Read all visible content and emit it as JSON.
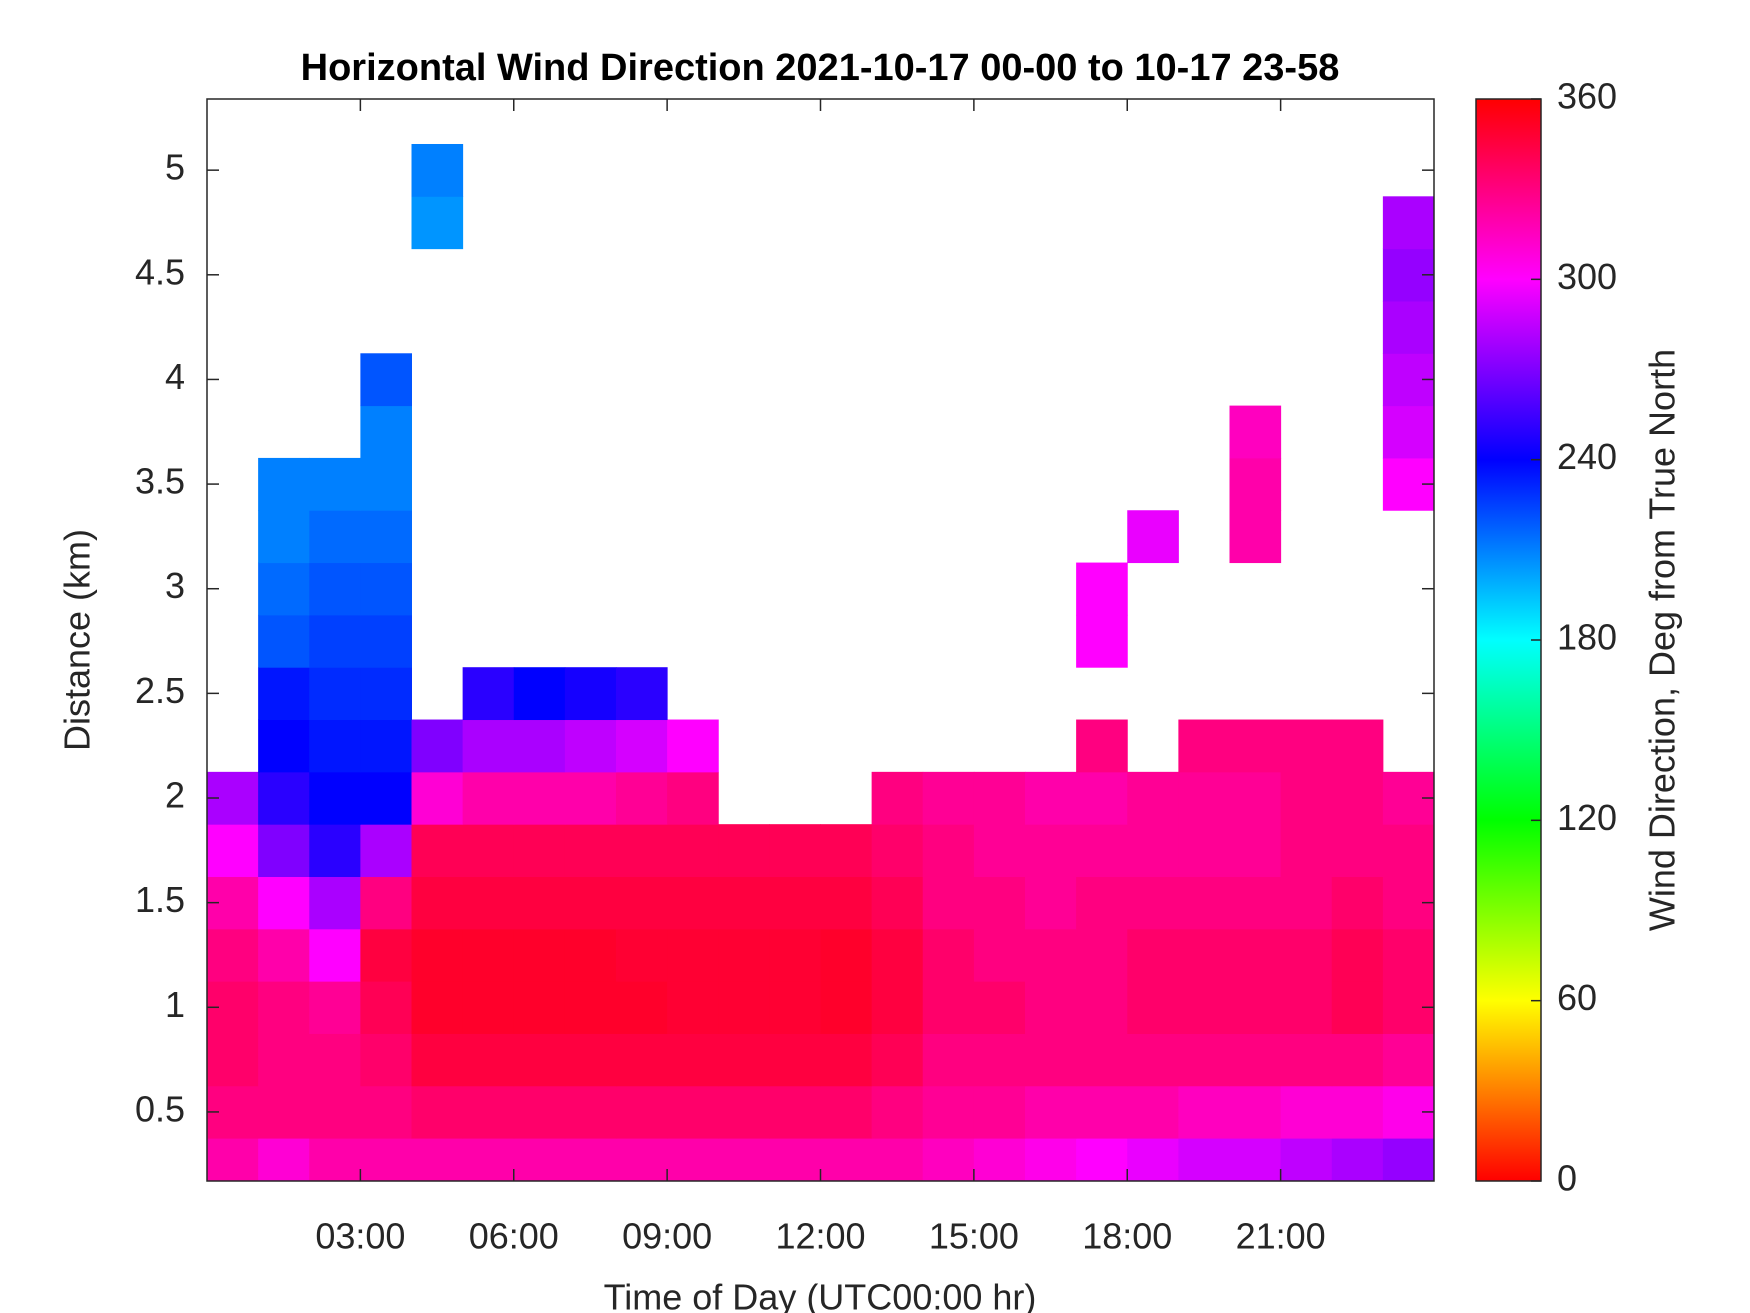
{
  "chart_data": {
    "type": "heatmap",
    "title": "Horizontal Wind Direction 2021-10-17 00-00 to 10-17 23-58",
    "x_label": "Time of Day (UTC00:00 hr)",
    "y_label": "Distance (km)",
    "xlim": [
      0,
      24
    ],
    "xticks": [
      {
        "value": 3,
        "label": "03:00"
      },
      {
        "value": 6,
        "label": "06:00"
      },
      {
        "value": 9,
        "label": "09:00"
      },
      {
        "value": 12,
        "label": "12:00"
      },
      {
        "value": 15,
        "label": "15:00"
      },
      {
        "value": 18,
        "label": "18:00"
      },
      {
        "value": 21,
        "label": "21:00"
      }
    ],
    "ylim": [
      0.17,
      5.34
    ],
    "yticks": [
      0.5,
      1,
      1.5,
      2,
      2.5,
      3,
      3.5,
      4,
      4.5,
      5
    ],
    "x": [
      0.5,
      1.5,
      2.5,
      3.5,
      4.5,
      5.5,
      6.5,
      7.5,
      8.5,
      9.5,
      10.5,
      11.5,
      12.5,
      13.5,
      14.5,
      15.5,
      16.5,
      17.5,
      18.5,
      19.5,
      20.5,
      21.5,
      22.5,
      23.5
    ],
    "y": [
      0.25,
      0.5,
      0.75,
      1,
      1.25,
      1.5,
      1.75,
      2,
      2.25,
      2.5,
      2.75,
      3,
      3.25,
      3.5,
      3.75,
      4,
      4.25,
      4.5,
      4.75,
      5
    ],
    "z": [
      [
        320,
        310,
        320,
        320,
        320,
        320,
        320,
        320,
        320,
        320,
        320,
        320,
        320,
        320,
        315,
        310,
        305,
        300,
        295,
        290,
        290,
        285,
        280,
        275
      ],
      [
        330,
        330,
        330,
        330,
        335,
        335,
        335,
        335,
        335,
        335,
        335,
        335,
        335,
        330,
        325,
        325,
        320,
        320,
        320,
        315,
        315,
        310,
        310,
        305
      ],
      [
        335,
        330,
        330,
        335,
        345,
        345,
        345,
        345,
        345,
        345,
        345,
        345,
        345,
        340,
        330,
        330,
        330,
        330,
        330,
        330,
        330,
        330,
        330,
        325
      ],
      [
        335,
        330,
        325,
        340,
        350,
        350,
        350,
        350,
        350,
        348,
        348,
        348,
        350,
        345,
        335,
        335,
        330,
        330,
        335,
        335,
        335,
        335,
        340,
        335
      ],
      [
        330,
        320,
        300,
        345,
        350,
        350,
        350,
        350,
        348,
        348,
        348,
        348,
        350,
        345,
        335,
        330,
        330,
        330,
        335,
        335,
        335,
        335,
        340,
        335
      ],
      [
        320,
        300,
        280,
        330,
        345,
        345,
        345,
        345,
        345,
        345,
        345,
        345,
        345,
        340,
        330,
        330,
        325,
        330,
        330,
        330,
        330,
        330,
        335,
        330
      ],
      [
        300,
        270,
        250,
        280,
        340,
        340,
        340,
        340,
        340,
        340,
        340,
        340,
        340,
        335,
        330,
        325,
        325,
        325,
        325,
        325,
        325,
        330,
        330,
        330
      ],
      [
        280,
        250,
        240,
        240,
        310,
        320,
        320,
        320,
        325,
        330,
        null,
        null,
        null,
        330,
        325,
        325,
        320,
        320,
        325,
        325,
        325,
        330,
        330,
        325
      ],
      [
        null,
        240,
        235,
        235,
        270,
        280,
        280,
        285,
        290,
        300,
        null,
        null,
        null,
        null,
        null,
        null,
        null,
        330,
        null,
        330,
        330,
        330,
        330,
        null
      ],
      [
        null,
        235,
        230,
        230,
        null,
        250,
        240,
        245,
        250,
        null,
        null,
        null,
        null,
        null,
        null,
        null,
        null,
        null,
        null,
        null,
        null,
        null,
        null,
        null
      ],
      [
        null,
        220,
        225,
        225,
        null,
        null,
        null,
        null,
        null,
        null,
        null,
        null,
        null,
        null,
        null,
        null,
        null,
        300,
        null,
        null,
        null,
        null,
        null,
        null
      ],
      [
        null,
        215,
        220,
        220,
        null,
        null,
        null,
        null,
        null,
        null,
        null,
        null,
        null,
        null,
        null,
        null,
        null,
        300,
        null,
        null,
        null,
        null,
        null,
        null
      ],
      [
        null,
        210,
        215,
        215,
        null,
        null,
        null,
        null,
        null,
        null,
        null,
        null,
        null,
        null,
        null,
        null,
        null,
        null,
        295,
        null,
        320,
        null,
        null,
        null
      ],
      [
        null,
        210,
        210,
        210,
        null,
        null,
        null,
        null,
        null,
        null,
        null,
        null,
        null,
        null,
        null,
        null,
        null,
        null,
        null,
        null,
        320,
        null,
        null,
        300
      ],
      [
        null,
        null,
        null,
        210,
        null,
        null,
        null,
        null,
        null,
        null,
        null,
        null,
        null,
        null,
        null,
        null,
        null,
        null,
        null,
        null,
        315,
        null,
        null,
        290
      ],
      [
        null,
        null,
        null,
        220,
        null,
        null,
        null,
        null,
        null,
        null,
        null,
        null,
        null,
        null,
        null,
        null,
        null,
        null,
        null,
        null,
        null,
        null,
        null,
        285
      ],
      [
        null,
        null,
        null,
        null,
        null,
        null,
        null,
        null,
        null,
        null,
        null,
        null,
        null,
        null,
        null,
        null,
        null,
        null,
        null,
        null,
        null,
        null,
        null,
        280
      ],
      [
        null,
        null,
        null,
        null,
        null,
        null,
        null,
        null,
        null,
        null,
        null,
        null,
        null,
        null,
        null,
        null,
        null,
        null,
        null,
        null,
        null,
        null,
        null,
        275
      ],
      [
        null,
        null,
        null,
        null,
        205,
        null,
        null,
        null,
        null,
        null,
        null,
        null,
        null,
        null,
        null,
        null,
        null,
        null,
        null,
        null,
        null,
        null,
        null,
        280
      ],
      [
        null,
        null,
        null,
        null,
        210,
        null,
        null,
        null,
        null,
        null,
        null,
        null,
        null,
        null,
        null,
        null,
        null,
        null,
        null,
        null,
        null,
        null,
        null,
        null
      ]
    ],
    "colormap": [
      "#ff0000",
      "#ffff00",
      "#00ff00",
      "#00ffff",
      "#0000ff",
      "#ff00ff",
      "#ff0000"
    ],
    "colorbar": {
      "label": "Wind Direction, Deg from True North",
      "clim": [
        0,
        360
      ],
      "ticks": [
        0,
        60,
        120,
        180,
        240,
        300,
        360
      ]
    }
  }
}
